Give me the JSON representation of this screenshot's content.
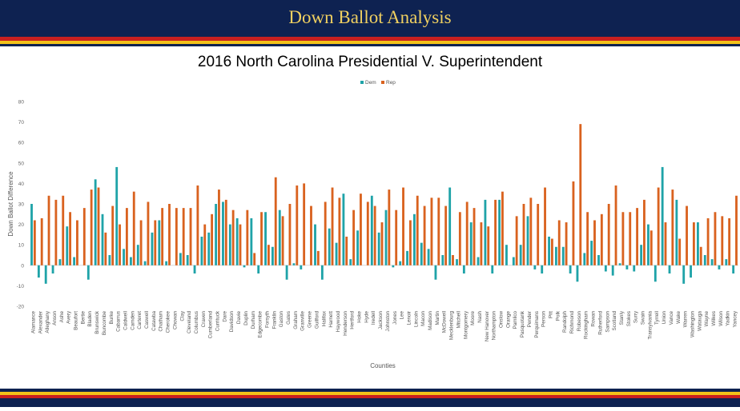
{
  "slide_title": "Down Ballot Analysis",
  "chart_data": {
    "type": "bar",
    "title": "2016 North Carolina Presidential V. Superintendent",
    "x_label": "Counties",
    "y_label": "Down Ballot Difference",
    "legend": "top",
    "grid": false,
    "ylim": [
      -20,
      80
    ],
    "yticks": [
      -20,
      -10,
      0,
      10,
      20,
      30,
      40,
      50,
      60,
      70,
      80
    ],
    "categories": [
      "Alamance",
      "Alexander",
      "Alleghany",
      "Anson",
      "Ashe",
      "Avery",
      "Beaufort",
      "Bertie",
      "Bladen",
      "Brunswick",
      "Buncombe",
      "Burke",
      "Cabarrus",
      "Caldwell",
      "Camden",
      "Carteret",
      "Caswell",
      "Catawba",
      "Chatham",
      "Cherokee",
      "Chowan",
      "Clay",
      "Cleveland",
      "Columbus",
      "Craven",
      "Cumberland",
      "Currituck",
      "Dare",
      "Davidson",
      "Davie",
      "Duplin",
      "Durham",
      "Edgecombe",
      "Forsyth",
      "Franklin",
      "Gaston",
      "Gates",
      "Graham",
      "Granville",
      "Greene",
      "Guilford",
      "Halifax",
      "Harnett",
      "Haywood",
      "Henderson",
      "Hertford",
      "Hoke",
      "Hyde",
      "Iredell",
      "Jackson",
      "Johnston",
      "Jones",
      "Lee",
      "Lenoir",
      "Lincoln",
      "Macon",
      "Madison",
      "Martin",
      "McDowell",
      "Mecklenburg",
      "Mitchell",
      "Montgomery",
      "Moore",
      "Nash",
      "New Hanover",
      "Northampton",
      "Onslow",
      "Orange",
      "Pamlico",
      "Pasquotank",
      "Pender",
      "Perquimans",
      "Person",
      "Pitt",
      "Polk",
      "Randolph",
      "Richmond",
      "Robeson",
      "Rockingham",
      "Rowan",
      "Rutherford",
      "Sampson",
      "Scotland",
      "Stanly",
      "Stokes",
      "Surry",
      "Swain",
      "Transylvania",
      "Tyrrell",
      "Union",
      "Vance",
      "Wake",
      "Warren",
      "Washington",
      "Watauga",
      "Wayne",
      "Wilkes",
      "Wilson",
      "Yadkin",
      "Yancey"
    ],
    "series": [
      {
        "name": "Dem",
        "color": "#1fa3a8",
        "values": [
          30,
          -6,
          -9,
          -4,
          3,
          19,
          4,
          0,
          -7,
          42,
          25,
          5,
          48,
          8,
          4,
          10,
          2,
          16,
          22,
          2,
          0,
          6,
          5,
          -4,
          14,
          16,
          30,
          31,
          20,
          23,
          -1,
          23,
          -4,
          26,
          9,
          27,
          -7,
          1,
          -2,
          0,
          20,
          -7,
          18,
          11,
          35,
          3,
          17,
          0,
          34,
          16,
          27,
          -1,
          2,
          7,
          25,
          11,
          8,
          -7,
          5,
          38,
          3,
          -4,
          21,
          4,
          32,
          -4,
          32,
          10,
          4,
          10,
          24,
          -2,
          -4,
          14,
          9,
          9,
          -4,
          -8,
          6,
          12,
          5,
          -3,
          -5,
          1,
          -2,
          -3,
          10,
          20,
          -8,
          48,
          -4,
          32,
          -9,
          -6,
          21,
          5,
          3,
          -2,
          3,
          -4
        ]
      },
      {
        "name": "Rep",
        "color": "#d9621f",
        "values": [
          22,
          23,
          34,
          32,
          34,
          26,
          22,
          28,
          37,
          38,
          16,
          29,
          20,
          28,
          36,
          22,
          31,
          22,
          28,
          30,
          28,
          28,
          28,
          39,
          20,
          25,
          37,
          32,
          27,
          20,
          27,
          6,
          26,
          10,
          43,
          24,
          30,
          39,
          40,
          29,
          7,
          31,
          38,
          33,
          14,
          27,
          35,
          31,
          29,
          21,
          37,
          27,
          38,
          22,
          34,
          29,
          33,
          33,
          29,
          5,
          26,
          31,
          28,
          21,
          19,
          32,
          36,
          0,
          24,
          30,
          33,
          30,
          38,
          13,
          22,
          21,
          41,
          69,
          26,
          22,
          25,
          30,
          39,
          26,
          26,
          28,
          32,
          17,
          38,
          21,
          37,
          13,
          29,
          21,
          9,
          23,
          26,
          24,
          23,
          34
        ]
      }
    ]
  }
}
